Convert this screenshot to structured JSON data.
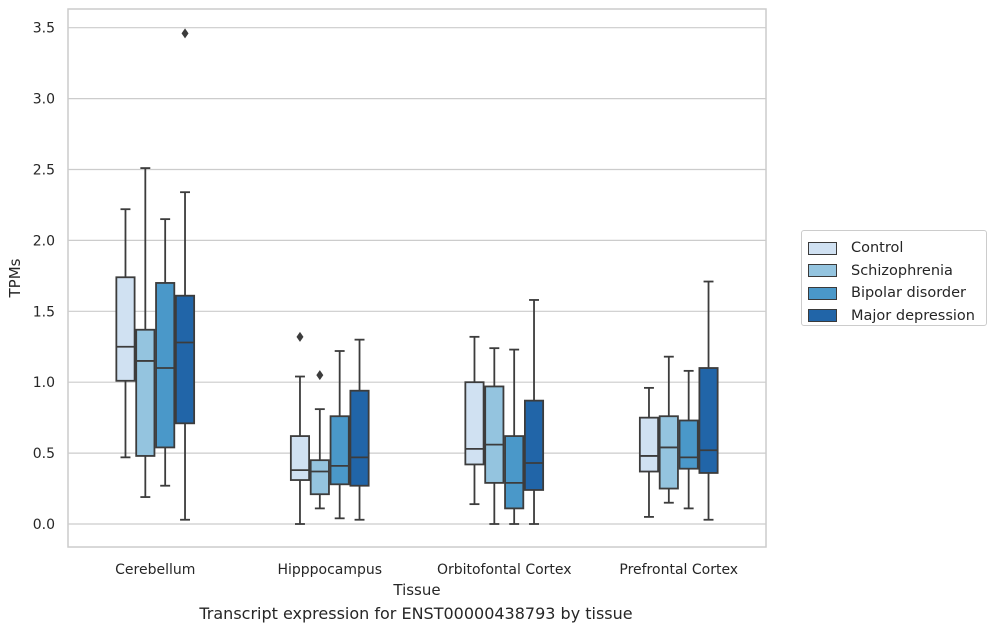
{
  "chart_data": {
    "type": "box",
    "xlabel": "Tissue",
    "ylabel": "TPMs",
    "ylim": [
      -0.16,
      3.64
    ],
    "yticks": [
      "0.0",
      "0.5",
      "1.0",
      "1.5",
      "2.0",
      "2.5",
      "3.0",
      "3.5"
    ],
    "grid": "horizontal",
    "legend_placement": "right",
    "categories": [
      "Cerebellum",
      "Hipppocampus",
      "Orbitofontal Cortex",
      "Prefrontal Cortex"
    ],
    "series": [
      {
        "name": "Control",
        "color": "#d0e1f2",
        "boxes": [
          {
            "min": 0.47,
            "q1": 1.01,
            "median": 1.25,
            "q3": 1.74,
            "max": 2.22,
            "outliers": []
          },
          {
            "min": 0.0,
            "q1": 0.31,
            "median": 0.38,
            "q3": 0.62,
            "max": 1.04,
            "outliers": [
              1.32
            ]
          },
          {
            "min": 0.14,
            "q1": 0.42,
            "median": 0.53,
            "q3": 1.0,
            "max": 1.32,
            "outliers": []
          },
          {
            "min": 0.05,
            "q1": 0.37,
            "median": 0.48,
            "q3": 0.75,
            "max": 0.96,
            "outliers": []
          }
        ]
      },
      {
        "name": "Schizophrenia",
        "color": "#94c4df",
        "boxes": [
          {
            "min": 0.19,
            "q1": 0.48,
            "median": 1.15,
            "q3": 1.37,
            "max": 2.51,
            "outliers": []
          },
          {
            "min": 0.11,
            "q1": 0.21,
            "median": 0.37,
            "q3": 0.45,
            "max": 0.81,
            "outliers": [
              1.05
            ]
          },
          {
            "min": 0.0,
            "q1": 0.29,
            "median": 0.56,
            "q3": 0.97,
            "max": 1.24,
            "outliers": []
          },
          {
            "min": 0.15,
            "q1": 0.25,
            "median": 0.54,
            "q3": 0.76,
            "max": 1.18,
            "outliers": []
          }
        ]
      },
      {
        "name": "Bipolar disorder",
        "color": "#4a98c9",
        "boxes": [
          {
            "min": 0.27,
            "q1": 0.54,
            "median": 1.1,
            "q3": 1.7,
            "max": 2.15,
            "outliers": []
          },
          {
            "min": 0.04,
            "q1": 0.28,
            "median": 0.41,
            "q3": 0.76,
            "max": 1.22,
            "outliers": []
          },
          {
            "min": 0.0,
            "q1": 0.11,
            "median": 0.29,
            "q3": 0.62,
            "max": 1.23,
            "outliers": []
          },
          {
            "min": 0.11,
            "q1": 0.39,
            "median": 0.47,
            "q3": 0.73,
            "max": 1.08,
            "outliers": []
          }
        ]
      },
      {
        "name": "Major depression",
        "color": "#2165a8",
        "boxes": [
          {
            "min": 0.03,
            "q1": 0.71,
            "median": 1.28,
            "q3": 1.61,
            "max": 2.34,
            "outliers": [
              3.46
            ]
          },
          {
            "min": 0.03,
            "q1": 0.27,
            "median": 0.47,
            "q3": 0.94,
            "max": 1.3,
            "outliers": []
          },
          {
            "min": 0.0,
            "q1": 0.24,
            "median": 0.43,
            "q3": 0.87,
            "max": 1.58,
            "outliers": []
          },
          {
            "min": 0.03,
            "q1": 0.36,
            "median": 0.52,
            "q3": 1.1,
            "max": 1.71,
            "outliers": []
          }
        ]
      }
    ],
    "caption": "Transcript expression for ENST00000438793 by tissue"
  }
}
